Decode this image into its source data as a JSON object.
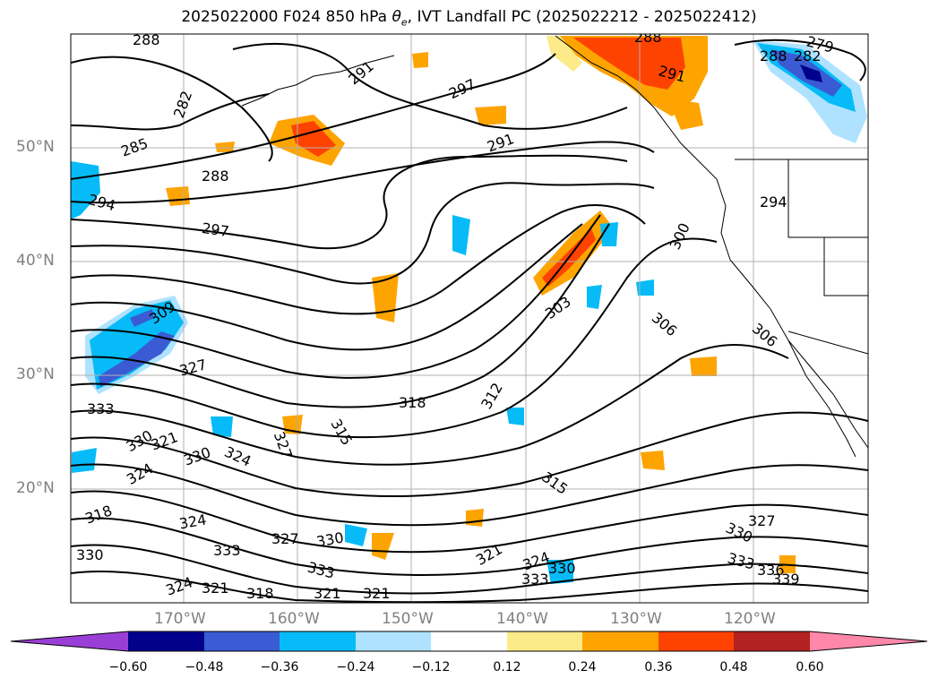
{
  "title": "2025022000 F024 850 hPa θe, IVT Landfall PC (2025022212 - 2025022412)",
  "title_parts": {
    "prefix": "2025022000 F024 850 hPa ",
    "theta": "θ",
    "theta_sub": "e",
    "suffix": ", IVT Landfall PC (2025022212 - 2025022412)"
  },
  "map": {
    "lat_labels": [
      "50°N",
      "40°N",
      "30°N",
      "20°N"
    ],
    "lon_labels": [
      "170°W",
      "160°W",
      "150°W",
      "140°W",
      "130°W",
      "120°W"
    ],
    "contour_labels": [
      "288",
      "282",
      "285",
      "288",
      "294",
      "297",
      "309",
      "327",
      "333",
      "330",
      "321",
      "324",
      "330",
      "318",
      "330",
      "324",
      "333",
      "327",
      "330",
      "333",
      "324",
      "321",
      "318",
      "321",
      "321",
      "315",
      "318",
      "312",
      "303",
      "300",
      "306",
      "306",
      "294",
      "291",
      "297",
      "291",
      "288",
      "279",
      "288",
      "282",
      "291",
      "315",
      "321",
      "324",
      "330",
      "333",
      "327",
      "330",
      "333",
      "336",
      "339",
      "324",
      "327"
    ]
  },
  "colorbar": {
    "colors": [
      "#9a3fd6",
      "#01018c",
      "#3a5bd3",
      "#06bbf7",
      "#afe2fe",
      "#ffffff",
      "#fdea89",
      "#fea401",
      "#fe4301",
      "#b22221",
      "#ff88aa"
    ],
    "ticks": [
      "−0.60",
      "−0.48",
      "−0.36",
      "−0.24",
      "−0.12",
      "0.12",
      "0.24",
      "0.36",
      "0.48",
      "0.60"
    ]
  }
}
